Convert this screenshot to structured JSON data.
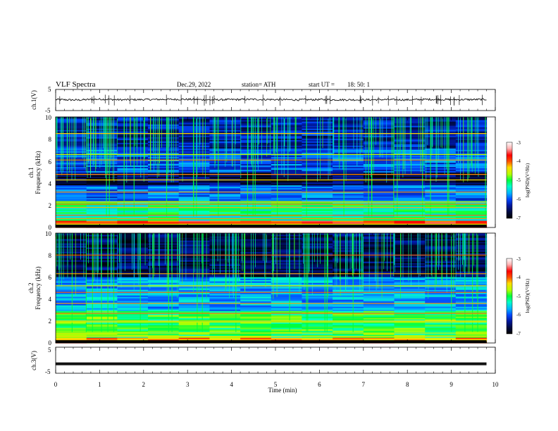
{
  "header": {
    "title": "VLF  Spectra",
    "date": "Dec.29, 2022",
    "station": "station= ATH",
    "start_label": "start  UT  =",
    "start_time": "18: 50: 1"
  },
  "colors": {
    "waveform": "#111111",
    "background": "#ffffff",
    "spectrum_scale": [
      "#000000",
      "#000a3c",
      "#0018a0",
      "#0048ff",
      "#00b4ff",
      "#00ffc8",
      "#00ff3c",
      "#b4ff00",
      "#ffdc00",
      "#ff5000",
      "#ff0000",
      "#ffb4b4",
      "#ffffff"
    ]
  },
  "chart_data": [
    {
      "id": "ch1-waveform",
      "type": "line",
      "ylabel": "ch.1(V)",
      "ylim": [
        -5,
        5
      ],
      "yticks": [
        "5",
        "-5"
      ],
      "xlim": [
        0,
        10
      ],
      "series": [
        {
          "x": [
            0,
            0.5,
            1,
            1.5,
            2,
            2.5,
            3,
            3.5,
            4,
            4.5,
            5,
            5.5,
            6,
            6.5,
            7,
            7.5,
            8,
            8.5,
            9,
            9.5,
            9.8
          ],
          "values": [
            0.2,
            0.0,
            0.4,
            0.1,
            0.2,
            0.3,
            0.3,
            0.1,
            0.2,
            0.3,
            0.2,
            0.1,
            0.2,
            0.1,
            0.1,
            0.2,
            0.1,
            0.3,
            0.2,
            0.2,
            0.3
          ]
        }
      ]
    },
    {
      "id": "ch1-spectrogram",
      "type": "heatmap",
      "ylabel": "ch.1\nFrequency  (kHz)",
      "ylim": [
        0,
        10
      ],
      "yticks": [
        "10",
        "8",
        "6",
        "4",
        "2",
        "0"
      ],
      "xlim": [
        0,
        10
      ],
      "colorbar": {
        "label": "log(PSD)(V²/Hz)",
        "range": [
          -7,
          -3
        ],
        "ticks": [
          "-3",
          "-4",
          "-5",
          "-6",
          "-7"
        ]
      },
      "lines_khz": [
        0.3,
        0.8,
        1.1,
        1.8,
        2.1,
        2.3,
        3.2,
        4.3,
        4.8,
        6.1,
        6.6,
        8.5
      ],
      "bands": [
        {
          "from_khz": 0,
          "to_khz": 0.6,
          "level": -3.8
        },
        {
          "from_khz": 0.6,
          "to_khz": 2.4,
          "level": -5.2
        },
        {
          "from_khz": 2.4,
          "to_khz": 3.8,
          "level": -5.9
        },
        {
          "from_khz": 3.8,
          "to_khz": 5.0,
          "level": -6.6
        },
        {
          "from_khz": 5.0,
          "to_khz": 7.2,
          "level": -6.0
        },
        {
          "from_khz": 7.2,
          "to_khz": 10,
          "level": -6.3
        }
      ],
      "time_extent_min": 9.8
    },
    {
      "id": "ch2-spectrogram",
      "type": "heatmap",
      "ylabel": "ch.2\nFrequency  (kHz)",
      "ylim": [
        0,
        10
      ],
      "yticks": [
        "10",
        "8",
        "6",
        "4",
        "2",
        "0"
      ],
      "xlim": [
        0,
        10
      ],
      "colorbar": {
        "label": "log(PSD)(V²/Hz)",
        "range": [
          -7,
          -3
        ],
        "ticks": [
          "-3",
          "-4",
          "-5",
          "-6",
          "-7"
        ]
      },
      "lines_khz": [
        0.6,
        0.9,
        1.9,
        2.0,
        2.7,
        3.6,
        4.6,
        5.2,
        6.3,
        8.0
      ],
      "bands": [
        {
          "from_khz": 0,
          "to_khz": 0.5,
          "level": -4.2
        },
        {
          "from_khz": 0.5,
          "to_khz": 3.0,
          "level": -5.0
        },
        {
          "from_khz": 3.0,
          "to_khz": 6.0,
          "level": -5.7
        },
        {
          "from_khz": 6.0,
          "to_khz": 10,
          "level": -6.6
        }
      ],
      "time_extent_min": 9.8
    },
    {
      "id": "ch3-waveform",
      "type": "line",
      "ylabel": "ch.3(V)",
      "ylim": [
        -5,
        5
      ],
      "yticks": [
        "5",
        "-5"
      ],
      "xlim": [
        0,
        10
      ],
      "xlabel": "Time  (min)",
      "xticks": [
        "0",
        "1",
        "2",
        "3",
        "4",
        "5",
        "6",
        "7",
        "8",
        "9",
        "10"
      ],
      "series": [
        {
          "x": [
            0,
            9.8
          ],
          "values": [
            -1.4,
            -1.4
          ]
        }
      ]
    }
  ]
}
